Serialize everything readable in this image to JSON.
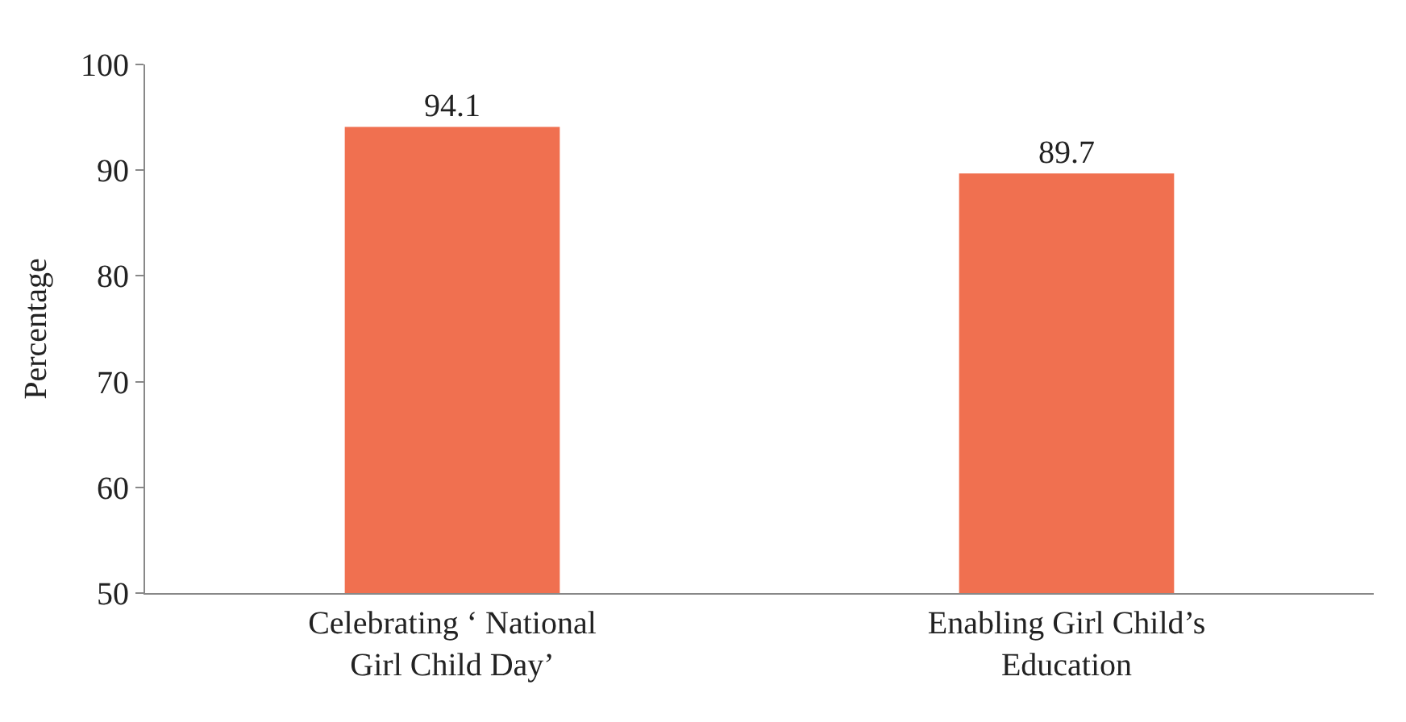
{
  "chart_data": {
    "type": "bar",
    "ylabel": "Percentage",
    "categories": [
      "Celebrating ‘ National Girl Child Day’",
      "Enabling Girl Child’s Education"
    ],
    "values": [
      94.1,
      89.7
    ],
    "color": "#f07050",
    "ylim": [
      50,
      100
    ],
    "yticks": [
      50,
      60,
      70,
      80,
      90,
      100
    ],
    "data_labels": true
  }
}
